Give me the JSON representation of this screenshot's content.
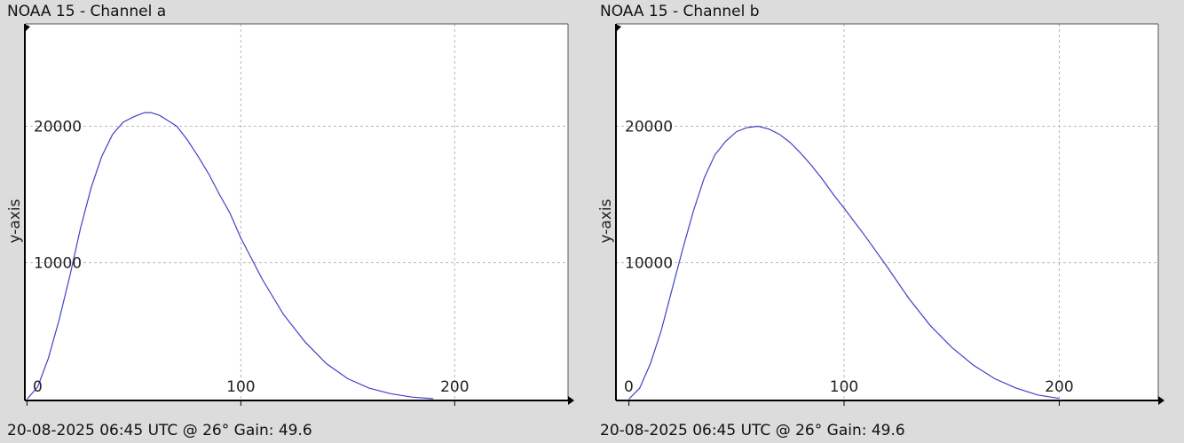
{
  "colors": {
    "background": "#dcdcdc",
    "plot_background": "#ffffff",
    "grid": "#b8b8b8",
    "line": "#4040c8",
    "axis": "#000000"
  },
  "chart_data": [
    {
      "type": "line",
      "title": "NOAA 15 - Channel a",
      "footer": "20-08-2025 06:45 UTC @ 26° Gain: 49.6",
      "ylabel": "y-axis",
      "xlabel": "",
      "xlim": [
        -1,
        253
      ],
      "ylim": [
        -100,
        27500
      ],
      "grid": true,
      "x_ticks": [
        0,
        100,
        200
      ],
      "x_tick_labels": [
        "0",
        "100",
        "200"
      ],
      "y_ticks": [
        10000,
        20000
      ],
      "y_tick_labels": [
        "10000",
        "20000"
      ],
      "series": [
        {
          "x": [
            0,
            5,
            10,
            15,
            20,
            25,
            30,
            35,
            40,
            45,
            50,
            55,
            58,
            62,
            66,
            70,
            75,
            80,
            85,
            90,
            95,
            100,
            110,
            120,
            130,
            140,
            150,
            160,
            170,
            180,
            190
          ],
          "y": [
            0,
            900,
            3000,
            5800,
            9000,
            12500,
            15500,
            17800,
            19400,
            20300,
            20700,
            21000,
            21000,
            20800,
            20400,
            20000,
            19000,
            17800,
            16500,
            15000,
            13600,
            11800,
            8800,
            6200,
            4200,
            2600,
            1500,
            800,
            400,
            150,
            30
          ]
        }
      ]
    },
    {
      "type": "line",
      "title": "NOAA 15 - Channel b",
      "footer": "20-08-2025 06:45 UTC @ 26° Gain: 49.6",
      "ylabel": "y-axis",
      "xlabel": "",
      "xlim": [
        -6,
        246
      ],
      "ylim": [
        -100,
        27500
      ],
      "grid": true,
      "x_ticks": [
        0,
        100,
        200
      ],
      "x_tick_labels": [
        "0",
        "100",
        "200"
      ],
      "y_ticks": [
        10000,
        20000
      ],
      "y_tick_labels": [
        "10000",
        "20000"
      ],
      "series": [
        {
          "x": [
            0,
            5,
            10,
            15,
            20,
            25,
            30,
            35,
            40,
            45,
            50,
            55,
            60,
            65,
            70,
            75,
            80,
            85,
            90,
            95,
            100,
            110,
            120,
            130,
            140,
            150,
            160,
            170,
            180,
            190,
            200
          ],
          "y": [
            0,
            800,
            2600,
            5000,
            8000,
            11000,
            13800,
            16200,
            17900,
            18900,
            19600,
            19900,
            20000,
            19800,
            19400,
            18800,
            18000,
            17100,
            16100,
            15000,
            14000,
            11900,
            9700,
            7400,
            5400,
            3800,
            2500,
            1500,
            800,
            300,
            50
          ]
        }
      ]
    }
  ]
}
